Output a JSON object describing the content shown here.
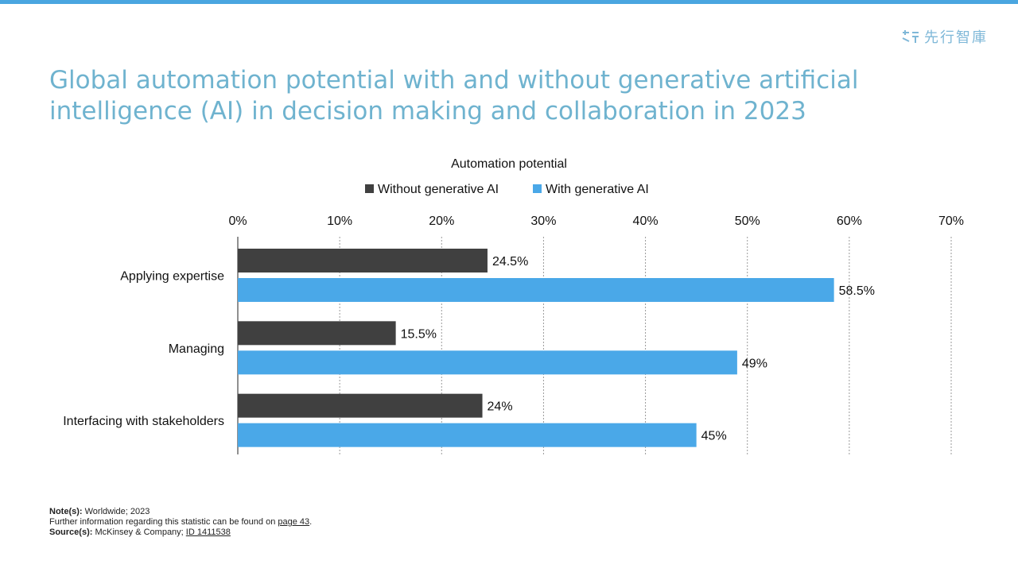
{
  "brand": {
    "text": "先行智庫"
  },
  "title": "Global automation potential with and without generative artificial intelligence (AI) in decision making and collaboration in 2023",
  "chart_data": {
    "type": "bar",
    "orientation": "horizontal",
    "title": "Automation potential",
    "categories": [
      "Applying expertise",
      "Managing",
      "Interfacing with stakeholders"
    ],
    "series": [
      {
        "name": "Without generative AI",
        "values": [
          24.5,
          15.5,
          24
        ],
        "labels": [
          "24.5%",
          "15.5%",
          "24%"
        ],
        "color": "#404040"
      },
      {
        "name": "With generative AI",
        "values": [
          58.5,
          49,
          45
        ],
        "labels": [
          "58.5%",
          "49%",
          "45%"
        ],
        "color": "#4aa8e8"
      }
    ],
    "xlim": [
      0,
      70
    ],
    "ticks": [
      0,
      10,
      20,
      30,
      40,
      50,
      60,
      70
    ],
    "tick_labels": [
      "0%",
      "10%",
      "20%",
      "30%",
      "40%",
      "50%",
      "60%",
      "70%"
    ],
    "xaxis_position": "top",
    "grid": "vertical-dotted",
    "legend": "top-center"
  },
  "footer": {
    "note_label": "Note(s):",
    "note_text": "Worldwide; 2023",
    "info_text": "Further  information regarding this statistic can be found on ",
    "info_link": "page 43",
    "info_end": ".",
    "source_label": "Source(s):",
    "source_text": "McKinsey & Company; ",
    "source_link": "ID 1411538"
  }
}
